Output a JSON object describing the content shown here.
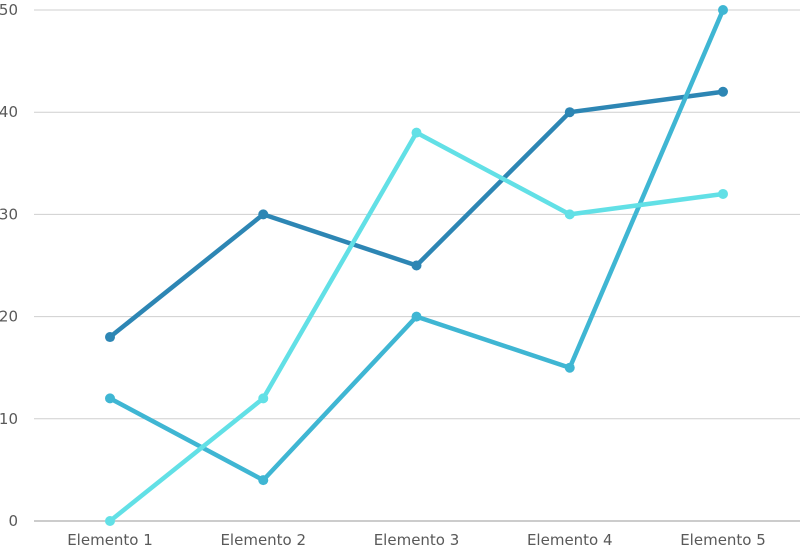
{
  "chart_data": {
    "type": "line",
    "categories": [
      "Elemento 1",
      "Elemento 2",
      "Elemento 3",
      "Elemento 4",
      "Elemento 5"
    ],
    "series": [
      {
        "color": "#2d86b4",
        "values": [
          18,
          30,
          25,
          40,
          42
        ]
      },
      {
        "color": "#3fb6d3",
        "values": [
          12,
          4,
          20,
          15,
          50
        ]
      },
      {
        "color": "#62e0e6",
        "values": [
          0,
          12,
          38,
          30,
          32
        ]
      }
    ],
    "y_ticks": [
      "0",
      "10",
      "20",
      "30",
      "40",
      "50"
    ],
    "ylim": [
      0,
      50
    ],
    "grid": true,
    "legend": "none"
  }
}
